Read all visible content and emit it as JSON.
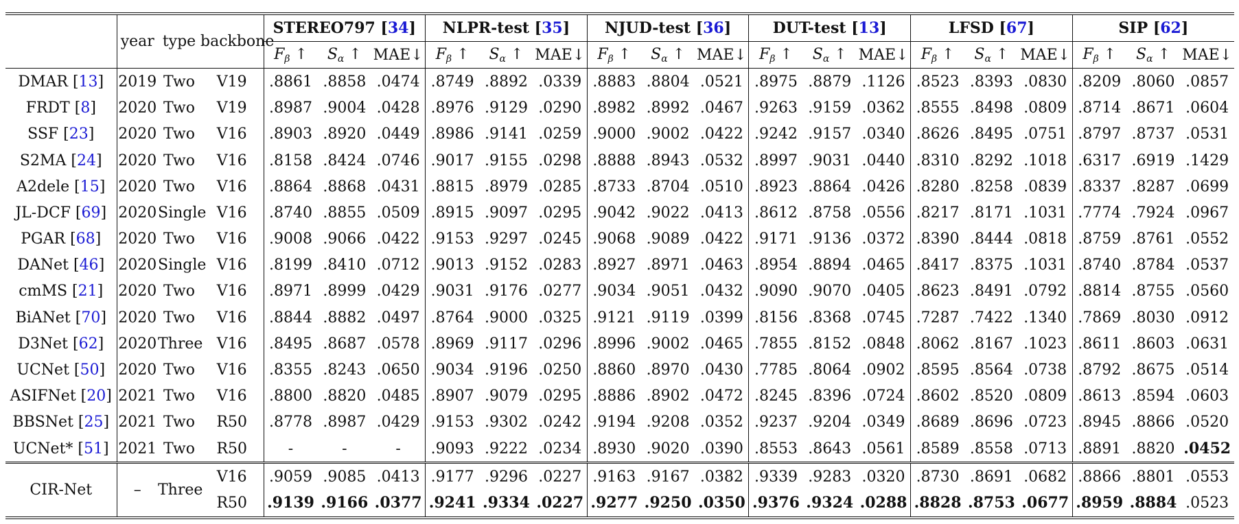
{
  "header": {
    "col_year": "year",
    "col_type": "type",
    "col_backbone": "backbone",
    "datasets": [
      {
        "name": "STEREO797",
        "ref": "34"
      },
      {
        "name": "NLPR-test",
        "ref": "35"
      },
      {
        "name": "NJUD-test",
        "ref": "36"
      },
      {
        "name": "DUT-test",
        "ref": "13"
      },
      {
        "name": "LFSD",
        "ref": "67"
      },
      {
        "name": "SIP",
        "ref": "62"
      }
    ],
    "metrics": {
      "f": "F",
      "f_sub": "β",
      "s": "S",
      "s_sub": "α",
      "up": " ↑",
      "mae": "MAE↓"
    }
  },
  "rows": [
    {
      "method": "DMAR",
      "ref": "13",
      "year": "2019",
      "type": "Two",
      "backbone": "V19",
      "values": [
        ".8861",
        ".8858",
        ".0474",
        ".8749",
        ".8892",
        ".0339",
        ".8883",
        ".8804",
        ".0521",
        ".8975",
        ".8879",
        ".1126",
        ".8523",
        ".8393",
        ".0830",
        ".8209",
        ".8060",
        ".0857"
      ]
    },
    {
      "method": "FRDT",
      "ref": "8",
      "year": "2020",
      "type": "Two",
      "backbone": "V19",
      "values": [
        ".8987",
        ".9004",
        ".0428",
        ".8976",
        ".9129",
        ".0290",
        ".8982",
        ".8992",
        ".0467",
        ".9263",
        ".9159",
        ".0362",
        ".8555",
        ".8498",
        ".0809",
        ".8714",
        ".8671",
        ".0604"
      ]
    },
    {
      "method": "SSF",
      "ref": "23",
      "year": "2020",
      "type": "Two",
      "backbone": "V16",
      "values": [
        ".8903",
        ".8920",
        ".0449",
        ".8986",
        ".9141",
        ".0259",
        ".9000",
        ".9002",
        ".0422",
        ".9242",
        ".9157",
        ".0340",
        ".8626",
        ".8495",
        ".0751",
        ".8797",
        ".8737",
        ".0531"
      ]
    },
    {
      "method": "S2MA",
      "ref": "24",
      "year": "2020",
      "type": "Two",
      "backbone": "V16",
      "values": [
        ".8158",
        ".8424",
        ".0746",
        ".9017",
        ".9155",
        ".0298",
        ".8888",
        ".8943",
        ".0532",
        ".8997",
        ".9031",
        ".0440",
        ".8310",
        ".8292",
        ".1018",
        ".6317",
        ".6919",
        ".1429"
      ]
    },
    {
      "method": "A2dele",
      "ref": "15",
      "year": "2020",
      "type": "Two",
      "backbone": "V16",
      "values": [
        ".8864",
        ".8868",
        ".0431",
        ".8815",
        ".8979",
        ".0285",
        ".8733",
        ".8704",
        ".0510",
        ".8923",
        ".8864",
        ".0426",
        ".8280",
        ".8258",
        ".0839",
        ".8337",
        ".8287",
        ".0699"
      ]
    },
    {
      "method": "JL-DCF",
      "ref": "69",
      "year": "2020",
      "type": "Single",
      "backbone": "V16",
      "values": [
        ".8740",
        ".8855",
        ".0509",
        ".8915",
        ".9097",
        ".0295",
        ".9042",
        ".9022",
        ".0413",
        ".8612",
        ".8758",
        ".0556",
        ".8217",
        ".8171",
        ".1031",
        ".7774",
        ".7924",
        ".0967"
      ]
    },
    {
      "method": "PGAR",
      "ref": "68",
      "year": "2020",
      "type": "Two",
      "backbone": "V16",
      "values": [
        ".9008",
        ".9066",
        ".0422",
        ".9153",
        ".9297",
        ".0245",
        ".9068",
        ".9089",
        ".0422",
        ".9171",
        ".9136",
        ".0372",
        ".8390",
        ".8444",
        ".0818",
        ".8759",
        ".8761",
        ".0552"
      ]
    },
    {
      "method": "DANet",
      "ref": "46",
      "year": "2020",
      "type": "Single",
      "backbone": "V16",
      "values": [
        ".8199",
        ".8410",
        ".0712",
        ".9013",
        ".9152",
        ".0283",
        ".8927",
        ".8971",
        ".0463",
        ".8954",
        ".8894",
        ".0465",
        ".8417",
        ".8375",
        ".1031",
        ".8740",
        ".8784",
        ".0537"
      ]
    },
    {
      "method": "cmMS",
      "ref": "21",
      "year": "2020",
      "type": "Two",
      "backbone": "V16",
      "values": [
        ".8971",
        ".8999",
        ".0429",
        ".9031",
        ".9176",
        ".0277",
        ".9034",
        ".9051",
        ".0432",
        ".9090",
        ".9070",
        ".0405",
        ".8623",
        ".8491",
        ".0792",
        ".8814",
        ".8755",
        ".0560"
      ]
    },
    {
      "method": "BiANet",
      "ref": "70",
      "year": "2020",
      "type": "Two",
      "backbone": "V16",
      "values": [
        ".8844",
        ".8882",
        ".0497",
        ".8764",
        ".9000",
        ".0325",
        ".9121",
        ".9119",
        ".0399",
        ".8156",
        ".8368",
        ".0745",
        ".7287",
        ".7422",
        ".1340",
        ".7869",
        ".8030",
        ".0912"
      ]
    },
    {
      "method": "D3Net",
      "ref": "62",
      "year": "2020",
      "type": "Three",
      "backbone": "V16",
      "values": [
        ".8495",
        ".8687",
        ".0578",
        ".8969",
        ".9117",
        ".0296",
        ".8996",
        ".9002",
        ".0465",
        ".7855",
        ".8152",
        ".0848",
        ".8062",
        ".8167",
        ".1023",
        ".8611",
        ".8603",
        ".0631"
      ]
    },
    {
      "method": "UCNet",
      "ref": "50",
      "year": "2020",
      "type": "Two",
      "backbone": "V16",
      "values": [
        ".8355",
        ".8243",
        ".0650",
        ".9034",
        ".9196",
        ".0250",
        ".8860",
        ".8970",
        ".0430",
        ".7785",
        ".8064",
        ".0902",
        ".8595",
        ".8564",
        ".0738",
        ".8792",
        ".8675",
        ".0514"
      ]
    },
    {
      "method": "ASIFNet",
      "ref": "20",
      "year": "2021",
      "type": "Two",
      "backbone": "V16",
      "values": [
        ".8800",
        ".8820",
        ".0485",
        ".8907",
        ".9079",
        ".0295",
        ".8886",
        ".8902",
        ".0472",
        ".8245",
        ".8396",
        ".0724",
        ".8602",
        ".8520",
        ".0809",
        ".8613",
        ".8594",
        ".0603"
      ]
    },
    {
      "method": "BBSNet",
      "ref": "25",
      "year": "2021",
      "type": "Two",
      "backbone": "R50",
      "values": [
        ".8778",
        ".8987",
        ".0429",
        ".9153",
        ".9302",
        ".0242",
        ".9194",
        ".9208",
        ".0352",
        ".9237",
        ".9204",
        ".0349",
        ".8689",
        ".8696",
        ".0723",
        ".8945",
        ".8866",
        ".0520"
      ]
    },
    {
      "method": "UCNet*",
      "ref": "51",
      "year": "2021",
      "type": "Two",
      "backbone": "R50",
      "values": [
        "-",
        "-",
        "-",
        ".9093",
        ".9222",
        ".0234",
        ".8930",
        ".9020",
        ".0390",
        ".8553",
        ".8643",
        ".0561",
        ".8589",
        ".8558",
        ".0713",
        ".8891",
        ".8820",
        ".0452"
      ]
    }
  ],
  "ours": {
    "method": "CIR-Net",
    "year": "–",
    "type": "Three",
    "rows": [
      {
        "backbone": "V16",
        "values": [
          ".9059",
          ".9085",
          ".0413",
          ".9177",
          ".9296",
          ".0227",
          ".9163",
          ".9167",
          ".0382",
          ".9339",
          ".9283",
          ".0320",
          ".8730",
          ".8691",
          ".0682",
          ".8866",
          ".8801",
          ".0553"
        ]
      },
      {
        "backbone": "R50",
        "values": [
          ".9139",
          ".9166",
          ".0377",
          ".9241",
          ".9334",
          ".0227",
          ".9277",
          ".9250",
          ".0350",
          ".9376",
          ".9324",
          ".0288",
          ".8828",
          ".8753",
          ".0677",
          ".8959",
          ".8884",
          ".0523"
        ]
      }
    ]
  }
}
